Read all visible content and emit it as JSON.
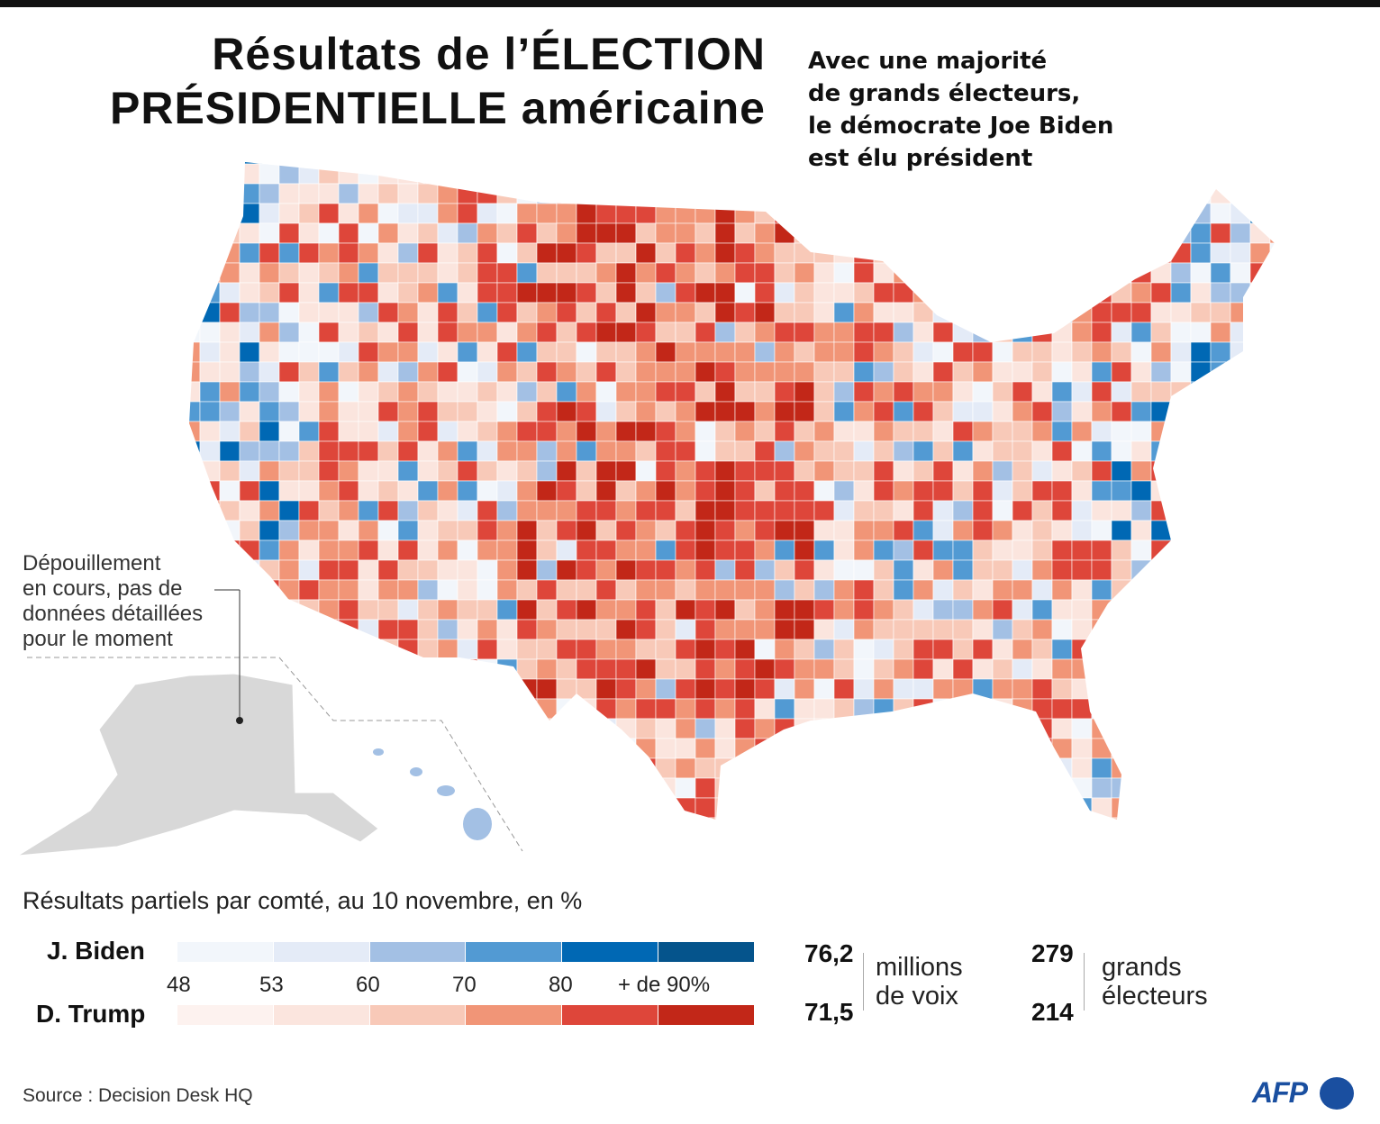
{
  "title": {
    "line1": "Résultats de l’ÉLECTION",
    "line2": "PRÉSIDENTIELLE américaine"
  },
  "subtitle": [
    "Avec une majorité",
    "de grands électeurs,",
    "le démocrate Joe Biden",
    "est élu président"
  ],
  "note": [
    "Dépouillement",
    "en cours, pas de",
    "données détaillées",
    "pour le moment"
  ],
  "legend": {
    "title": "Résultats partiels par comté, au 10 novembre, en %",
    "biden_label": "J. Biden",
    "trump_label": "D. Trump",
    "ticks": [
      "48",
      "53",
      "60",
      "70",
      "80",
      "+ de 90%"
    ],
    "biden_colors": [
      "#f2f6fb",
      "#e4ebf7",
      "#a3c0e4",
      "#529ad3",
      "#0068b4",
      "#05548c"
    ],
    "trump_colors": [
      "#fdf2ef",
      "#fbe5de",
      "#f8c9b8",
      "#f19577",
      "#de463a",
      "#c22718"
    ]
  },
  "totals": {
    "votes": {
      "biden": "76,2",
      "trump": "71,5",
      "unit": [
        "millions",
        "de voix"
      ]
    },
    "electors": {
      "biden": "279",
      "trump": "214",
      "unit": [
        "grands",
        "électeurs"
      ]
    }
  },
  "source": "Source : Decision Desk HQ",
  "logo": "AFP"
}
